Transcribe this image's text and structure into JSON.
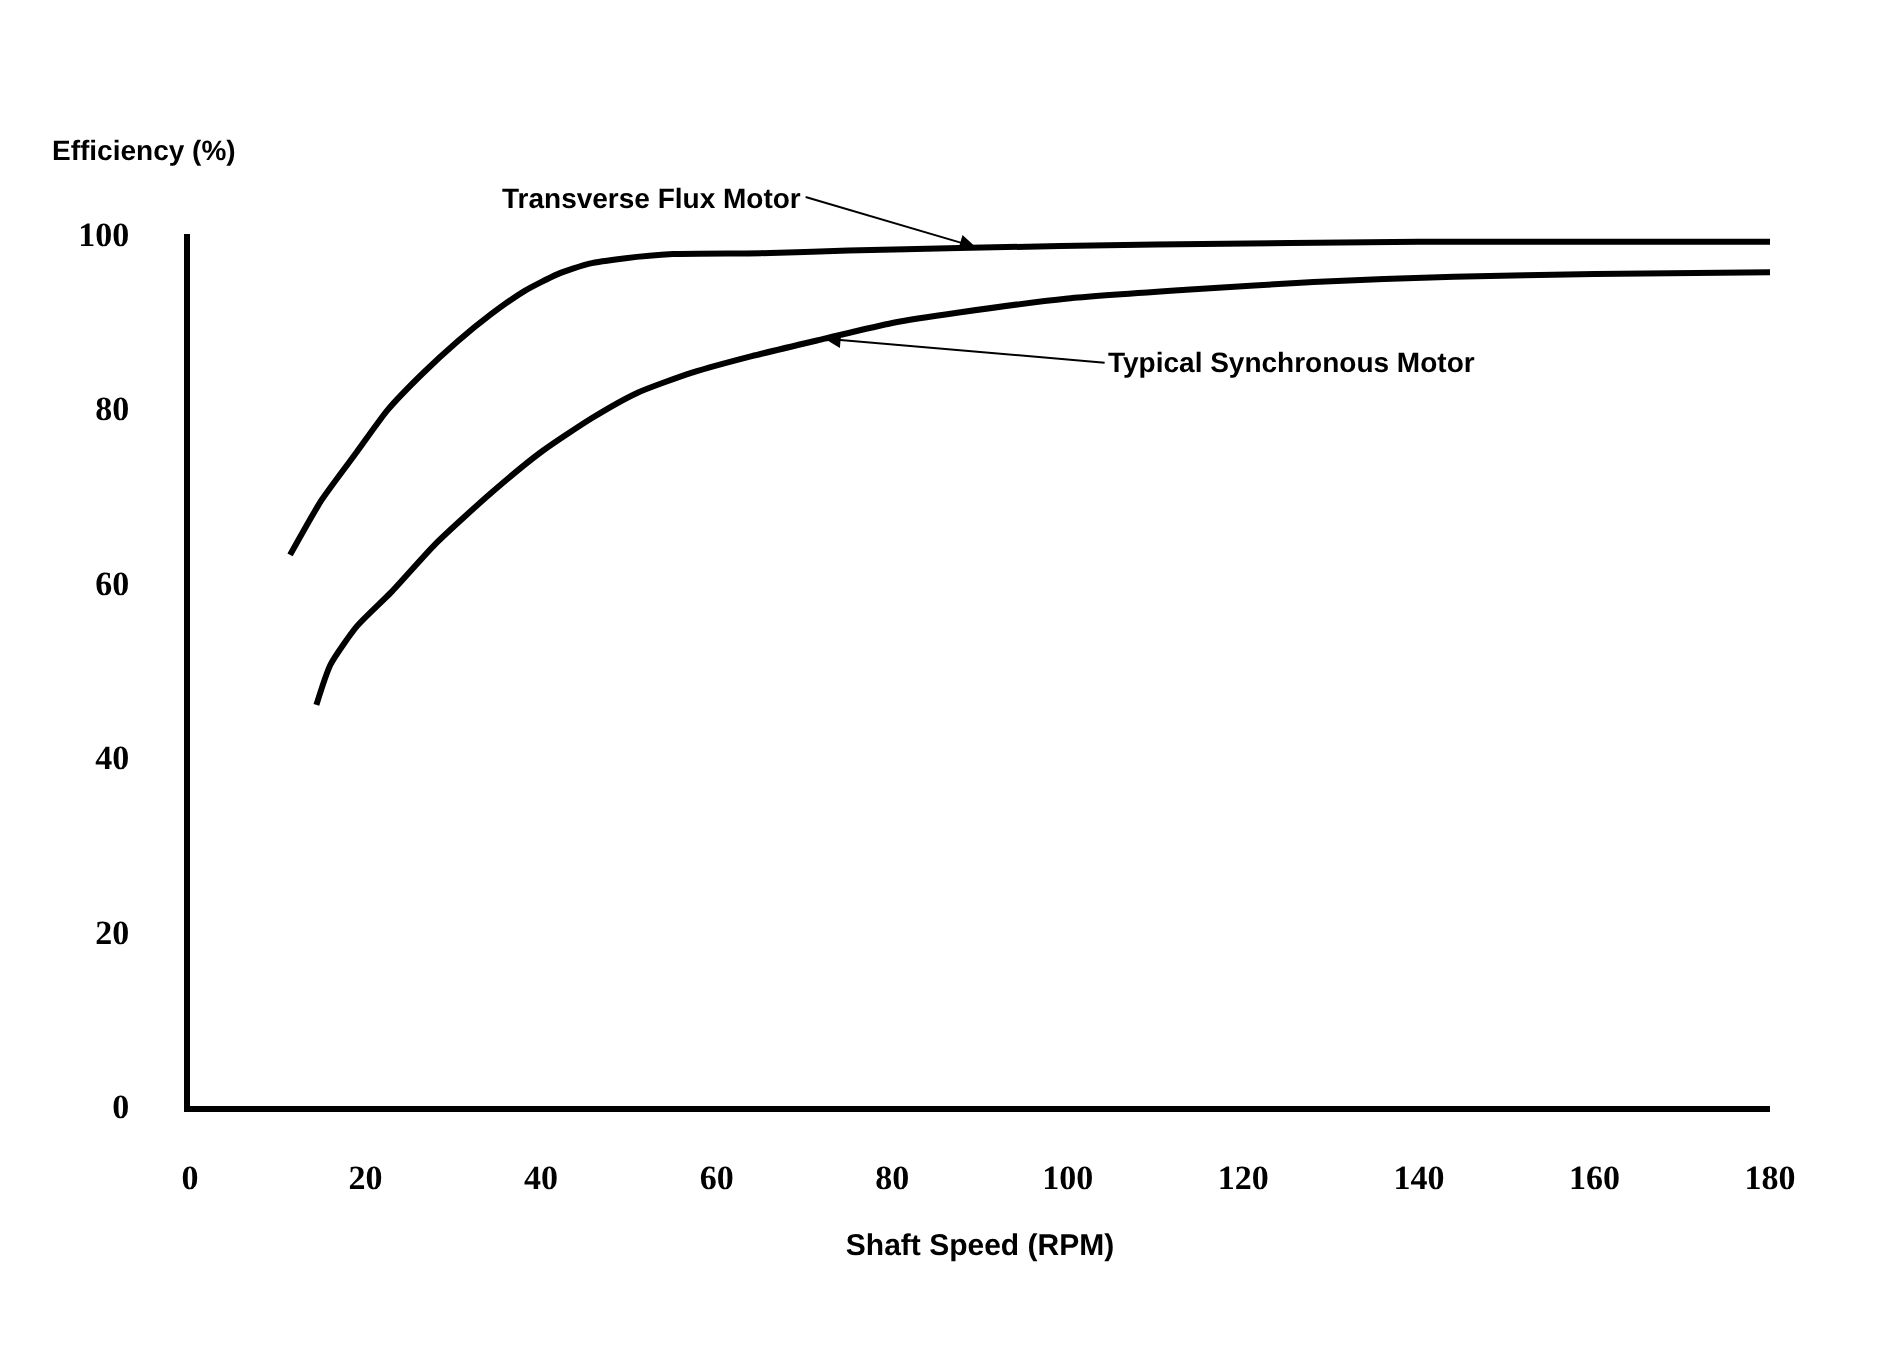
{
  "chart_data": {
    "type": "line",
    "xlabel": "Shaft Speed (RPM)",
    "ylabel": "Efficiency (%)",
    "xlim": [
      0,
      180
    ],
    "ylim": [
      0,
      100
    ],
    "xticks": [
      0,
      20,
      40,
      60,
      80,
      100,
      120,
      140,
      160,
      180
    ],
    "yticks": [
      0,
      20,
      40,
      60,
      80,
      100
    ],
    "marker": "none",
    "line_style": "solid",
    "series": [
      {
        "color": "#000000",
        "x": [
          11.4,
          15,
          19,
          22.5,
          26.5,
          30.5,
          34.3,
          38,
          41.9,
          45.5,
          49.4,
          55,
          65,
          75,
          87.6,
          110,
          140,
          180
        ],
        "values": [
          63.2,
          69.5,
          75,
          79.8,
          84,
          87.7,
          90.8,
          93.4,
          95.4,
          96.6,
          97.2,
          97.7,
          97.8,
          98.1,
          98.4,
          98.8,
          99.1,
          99.1
        ]
      },
      {
        "color": "#000000",
        "x": [
          14.4,
          16,
          19,
          22.9,
          28,
          34.3,
          40,
          45.8,
          51,
          57.2,
          64,
          72.3,
          80,
          87.6,
          100,
          113.5,
          128,
          144,
          160,
          180
        ],
        "values": [
          46,
          50.6,
          55,
          58.9,
          64.5,
          70.3,
          75,
          78.9,
          81.8,
          84.1,
          86,
          88,
          89.8,
          91,
          92.6,
          93.6,
          94.5,
          95.1,
          95.4,
          95.6
        ]
      }
    ],
    "annotations": [
      {
        "text": "Transverse Flux Motor",
        "x": 89.5,
        "y": 98.5
      },
      {
        "text": "Typical Synchronous Motor",
        "x": 72.3,
        "y": 88
      }
    ]
  }
}
